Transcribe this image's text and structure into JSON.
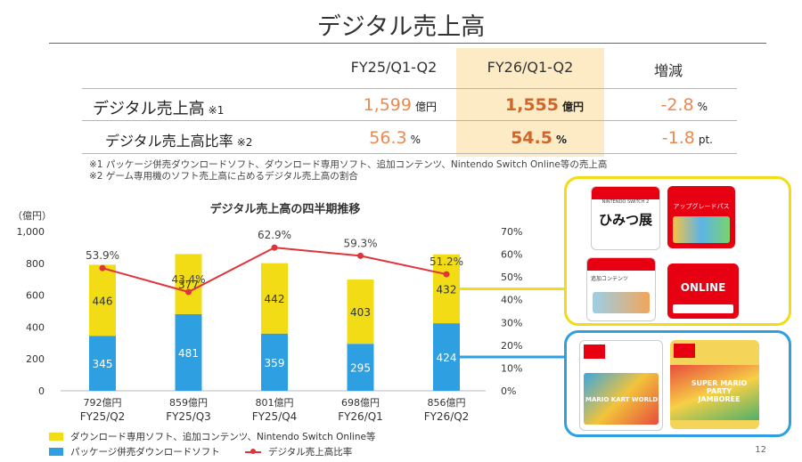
{
  "page": {
    "title": "デジタル売上高",
    "page_number": "12"
  },
  "summary_table": {
    "columns": [
      "FY25/Q1-Q2",
      "FY26/Q1-Q2",
      "増減"
    ],
    "rows": [
      {
        "label": "デジタル売上高",
        "note": "※1",
        "prev": "1,599",
        "prev_unit": "億円",
        "curr": "1,555",
        "curr_unit": "億円",
        "change": "-2.8",
        "change_unit": "%"
      },
      {
        "label": "デジタル売上高比率",
        "note": "※2",
        "prev": "56.3",
        "prev_unit": "%",
        "curr": "54.5",
        "curr_unit": "%",
        "change": "-1.8",
        "change_unit": "pt."
      }
    ],
    "footnotes": [
      "※1 パッケージ併売ダウンロードソフト、ダウンロード専用ソフト、追加コンテンツ、Nintendo Switch Online等の売上高",
      "※2 ゲーム専用機のソフト売上高に占めるデジタル売上高の割合"
    ]
  },
  "chart_data": {
    "type": "bar",
    "title": "デジタル売上高の四半期推移",
    "y_unit_label": "（億円）",
    "categories": [
      "FY25/Q2",
      "FY25/Q3",
      "FY25/Q4",
      "FY26/Q1",
      "FY26/Q2"
    ],
    "totals": [
      "792億円",
      "859億円",
      "801億円",
      "698億円",
      "856億円"
    ],
    "ylim": [
      0,
      1000
    ],
    "yticks": [
      "0",
      "200",
      "400",
      "600",
      "800",
      "1,000"
    ],
    "y2lim": [
      0,
      70
    ],
    "y2ticks": [
      "0%",
      "10%",
      "20%",
      "30%",
      "40%",
      "50%",
      "60%",
      "70%"
    ],
    "series": [
      {
        "name": "パッケージ併売ダウンロードソフト",
        "color": "#2e9fe0",
        "values": [
          345,
          481,
          359,
          295,
          424
        ]
      },
      {
        "name": "ダウンロード専用ソフト、追加コンテンツ、Nintendo Switch Online等",
        "color": "#f1dc16",
        "values": [
          446,
          377,
          442,
          403,
          432
        ]
      }
    ],
    "line": {
      "name": "デジタル売上高比率",
      "color": "#e0333a",
      "values": [
        53.9,
        43.4,
        62.9,
        59.3,
        51.2
      ],
      "labels": [
        "53.9%",
        "43.4%",
        "62.9%",
        "59.3%",
        "51.2%"
      ]
    },
    "legend_position": "bottom-left",
    "grid": false
  },
  "product_cards": {
    "yellow_group": [
      {
        "name": "ひみつ展",
        "badge": "NINTENDO SWITCH 2"
      },
      {
        "name": "アップグレードパス",
        "badge": ""
      },
      {
        "name": "追加コンテンツ",
        "badge": ""
      },
      {
        "name": "ONLINE",
        "badge": "Nintendo Switch Online"
      }
    ],
    "blue_group": [
      {
        "name": "MARIO KART WORLD",
        "badge": ""
      },
      {
        "name": "SUPER MARIO PARTY JAMBOREE",
        "badge": ""
      }
    ],
    "colors": {
      "yellow": "#f1dc16",
      "blue": "#2e9fe0",
      "switch_red": "#e60012"
    }
  }
}
